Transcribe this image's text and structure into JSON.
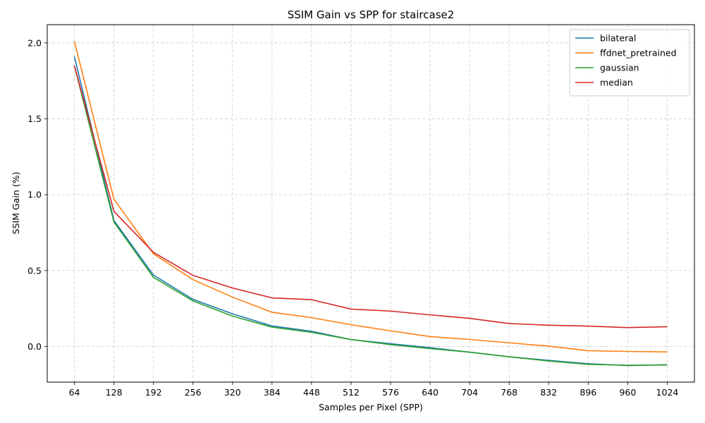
{
  "chart_data": {
    "type": "line",
    "title": "SSIM Gain vs SPP for staircase2",
    "xlabel": "Samples per Pixel (SPP)",
    "ylabel": "SSIM Gain (%)",
    "x": [
      64,
      128,
      192,
      256,
      320,
      384,
      448,
      512,
      576,
      640,
      704,
      768,
      832,
      896,
      960,
      1024
    ],
    "xticks": [
      "64",
      "128",
      "192",
      "256",
      "320",
      "384",
      "448",
      "512",
      "576",
      "640",
      "704",
      "768",
      "832",
      "896",
      "960",
      "1024"
    ],
    "yticks": [
      0.0,
      0.5,
      1.0,
      1.5,
      2.0
    ],
    "ytick_labels": [
      "0.0",
      "0.5",
      "1.0",
      "1.5",
      "2.0"
    ],
    "xlim": [
      20,
      1068
    ],
    "ylim": [
      -0.235,
      2.12
    ],
    "grid": true,
    "legend_position": "top-right",
    "series": [
      {
        "name": "bilateral",
        "color": "#1f77b4",
        "values": [
          1.91,
          0.83,
          0.47,
          0.31,
          0.215,
          0.135,
          0.1,
          0.045,
          0.018,
          -0.008,
          -0.038,
          -0.068,
          -0.092,
          -0.114,
          -0.126,
          -0.12
        ]
      },
      {
        "name": "ffdnet_pretrained",
        "color": "#ff7f0e",
        "values": [
          2.01,
          0.97,
          0.61,
          0.44,
          0.325,
          0.225,
          0.19,
          0.143,
          0.103,
          0.065,
          0.046,
          0.024,
          0.002,
          -0.028,
          -0.033,
          -0.036
        ]
      },
      {
        "name": "gaussian",
        "color": "#2ca02c",
        "values": [
          1.85,
          0.82,
          0.455,
          0.3,
          0.2,
          0.127,
          0.093,
          0.045,
          0.012,
          -0.014,
          -0.038,
          -0.068,
          -0.096,
          -0.118,
          -0.124,
          -0.122
        ]
      },
      {
        "name": "median",
        "color": "#d62728",
        "values": [
          1.85,
          0.89,
          0.62,
          0.468,
          0.385,
          0.32,
          0.308,
          0.246,
          0.233,
          0.208,
          0.185,
          0.151,
          0.14,
          0.134,
          0.124,
          0.13
        ]
      }
    ]
  }
}
